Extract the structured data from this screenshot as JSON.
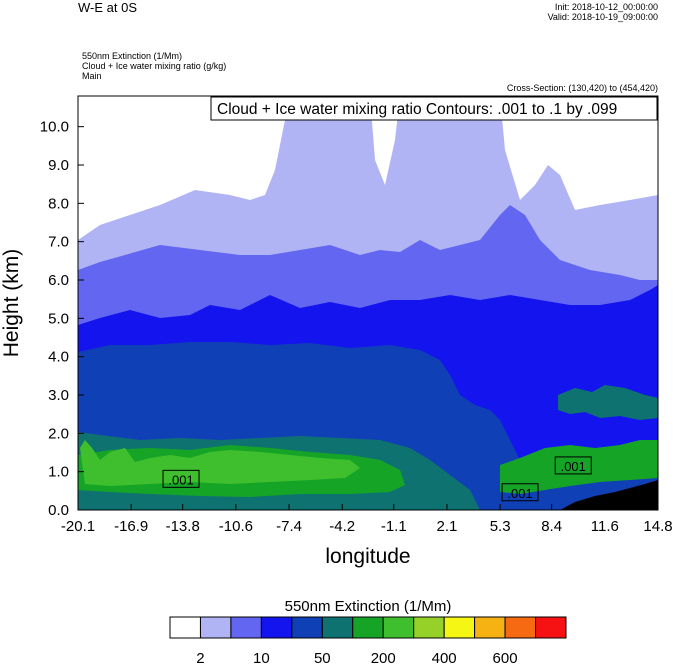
{
  "header": {
    "title": "W-E at 0S",
    "init": "Init: 2018-10-12_00:00:00",
    "valid": "Valid: 2018-10-19_09:00:00",
    "var_line1": "550nm Extinction   (1/Mm)",
    "var_line2": "Cloud + Ice water mixing ratio   (g/kg)",
    "var_line3": "Main",
    "cross_section": "Cross-Section: (130,420) to (454,420)"
  },
  "chart_data": {
    "type": "contour",
    "contour_label": "Cloud + Ice water mixing ratio Contours: .001 to .1 by .099",
    "xlabel": "longitude",
    "ylabel": "Height (km)",
    "xlim": [
      -20.1,
      14.8
    ],
    "ylim": [
      0.0,
      10.8
    ],
    "x_ticks": [
      "-20.1",
      "-16.9",
      "-13.8",
      "-10.6",
      "-7.4",
      "-4.2",
      "-1.1",
      "2.1",
      "5.3",
      "8.4",
      "11.6",
      "14.8"
    ],
    "y_ticks": [
      "0.0",
      "1.0",
      "2.0",
      "3.0",
      "4.0",
      "5.0",
      "6.0",
      "7.0",
      "8.0",
      "9.0",
      "10.0"
    ],
    "contour_value_labels": [
      {
        "text": ".001",
        "x": -13.9,
        "y": 0.8
      },
      {
        "text": ".001",
        "x": 6.5,
        "y": 0.45
      },
      {
        "text": ".001",
        "x": 9.7,
        "y": 1.15
      }
    ],
    "colorbar": {
      "title": "550nm Extinction  (1/Mm)",
      "colors": [
        "#ffffff",
        "#b0b4f5",
        "#6366f0",
        "#1414ee",
        "#1040b5",
        "#0e7370",
        "#16a427",
        "#3fbf2e",
        "#96d12a",
        "#f6f615",
        "#f6b212",
        "#f66a12",
        "#f61212"
      ],
      "tick_labels": [
        "2",
        "10",
        "50",
        "200",
        "400",
        "600"
      ]
    },
    "field_colors": {
      "ground": "#000000"
    }
  }
}
